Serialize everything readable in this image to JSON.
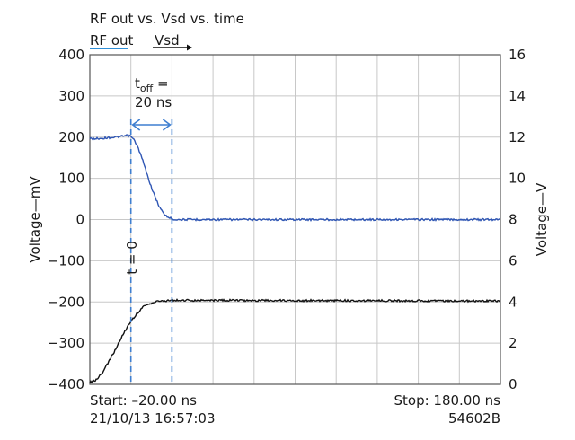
{
  "chart_data": {
    "type": "line",
    "title": "RF out vs. Vsd vs. time",
    "x": {
      "start": -20,
      "stop": 180,
      "unit": "ns",
      "grid_divisions": 10
    },
    "y_left": {
      "label": "Voltage—mV",
      "ylim": [
        -400,
        400
      ],
      "ticks": [
        400,
        300,
        200,
        100,
        0,
        -100,
        -200,
        -300,
        -400
      ]
    },
    "y_right": {
      "label": "Voltage—V",
      "ylim": [
        0,
        16
      ],
      "ticks": [
        16,
        14,
        12,
        10,
        8,
        6,
        4,
        2,
        0
      ]
    },
    "grid": true,
    "legend": {
      "placement": "top-left"
    },
    "series": [
      {
        "name": "RF out",
        "axis": "left",
        "color": "#2f56b4",
        "points": [
          [
            -20,
            196
          ],
          [
            -15,
            197
          ],
          [
            -10,
            199
          ],
          [
            -5,
            201
          ],
          [
            -2,
            204
          ],
          [
            0,
            202
          ],
          [
            2,
            190
          ],
          [
            4,
            168
          ],
          [
            6,
            140
          ],
          [
            8,
            108
          ],
          [
            10,
            78
          ],
          [
            12,
            52
          ],
          [
            14,
            30
          ],
          [
            16,
            14
          ],
          [
            18,
            6
          ],
          [
            20,
            2
          ],
          [
            22,
            0
          ],
          [
            26,
            0
          ],
          [
            180,
            0
          ]
        ]
      },
      {
        "name": "Vsd",
        "axis": "right",
        "color": "#111111",
        "points": [
          [
            -20,
            0.1
          ],
          [
            -17,
            0.2
          ],
          [
            -14,
            0.55
          ],
          [
            -11,
            1.05
          ],
          [
            -8,
            1.6
          ],
          [
            -5,
            2.2
          ],
          [
            -2,
            2.75
          ],
          [
            0,
            3.05
          ],
          [
            3,
            3.45
          ],
          [
            6,
            3.75
          ],
          [
            10,
            3.95
          ],
          [
            14,
            4.05
          ],
          [
            20,
            4.08
          ],
          [
            180,
            4.05
          ]
        ]
      }
    ],
    "annotations": {
      "toff_main": "t",
      "toff_sub": "off",
      "toff_eq": " =",
      "toff_value": "20 ns",
      "t_zero": "t = 0",
      "markers_x": [
        0,
        20
      ]
    }
  },
  "footer": {
    "start": "Start: –20.00 ns",
    "stop": "Stop: 180.00 ns",
    "timestamp": "21/10/13 16:57:03",
    "instrument": "54602B"
  }
}
